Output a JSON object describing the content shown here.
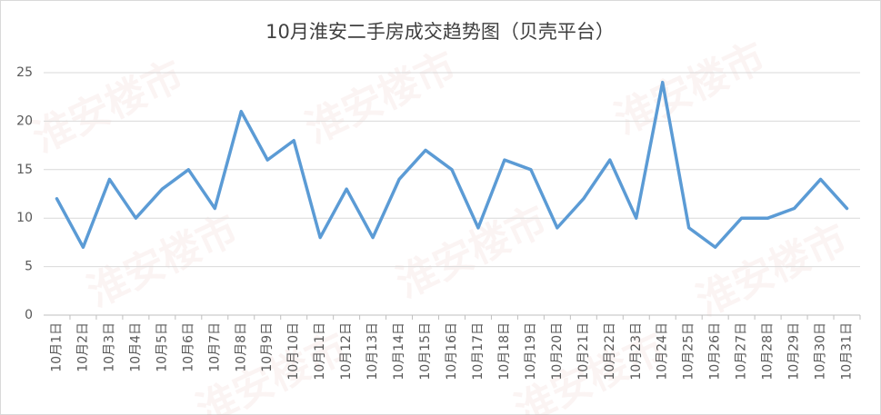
{
  "chart_data": {
    "type": "line",
    "title": "10月淮安二手房成交趋势图（贝壳平台）",
    "watermark": "淮安楼市",
    "categories": [
      "10月1日",
      "10月2日",
      "10月3日",
      "10月4日",
      "10月5日",
      "10月6日",
      "10月7日",
      "10月8日",
      "10月9日",
      "10月10日",
      "10月11日",
      "10月12日",
      "10月13日",
      "10月14日",
      "10月15日",
      "10月16日",
      "10月17日",
      "10月18日",
      "10月19日",
      "10月20日",
      "10月21日",
      "10月22日",
      "10月23日",
      "10月24日",
      "10月25日",
      "10月26日",
      "10月27日",
      "10月28日",
      "10月29日",
      "10月30日",
      "10月31日"
    ],
    "values": [
      12,
      7,
      14,
      10,
      13,
      15,
      11,
      21,
      16,
      18,
      8,
      13,
      8,
      14,
      17,
      15,
      9,
      16,
      15,
      9,
      12,
      16,
      10,
      24,
      9,
      7,
      10,
      10,
      11,
      14,
      11
    ],
    "color": "#5b9bd5",
    "ylim": [
      0,
      25
    ],
    "yticks": [
      0,
      5,
      10,
      15,
      20,
      25
    ],
    "grid": true
  }
}
